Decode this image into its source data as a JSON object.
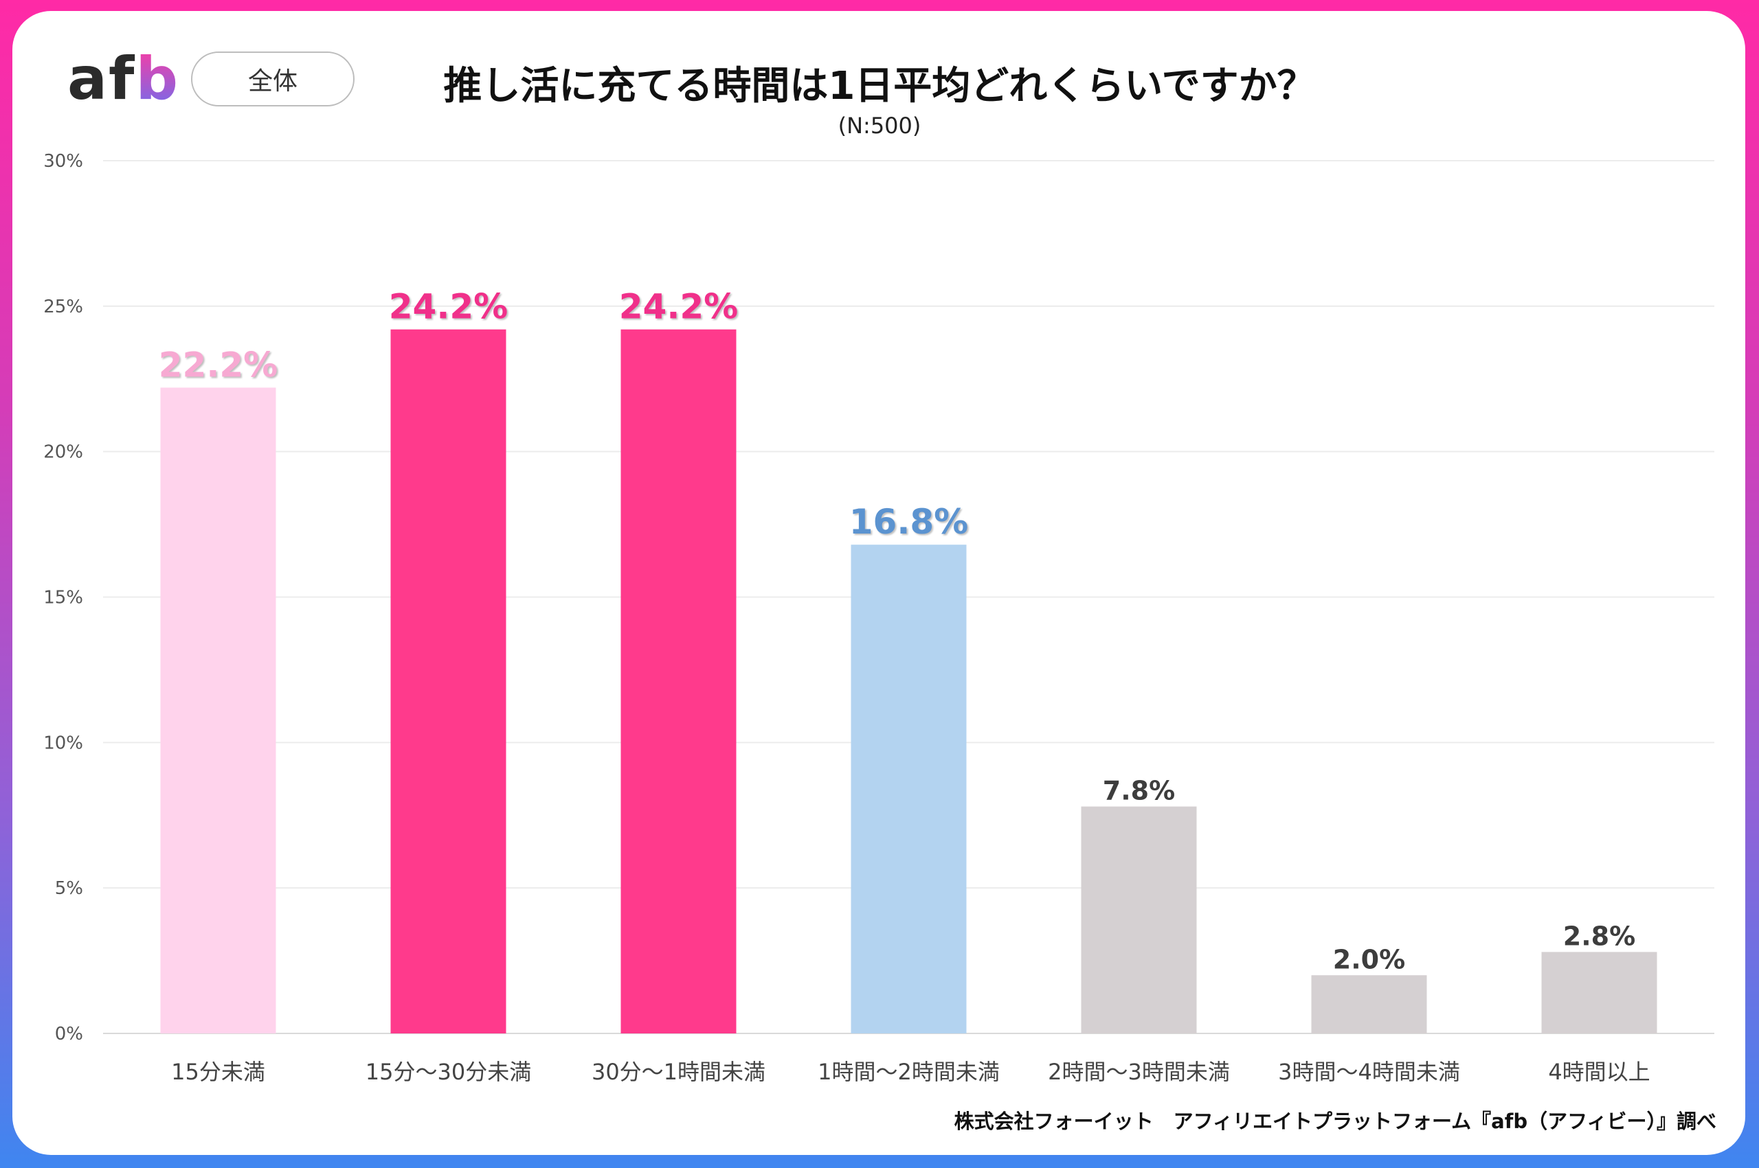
{
  "header": {
    "logo_text": "afb",
    "segment_label": "全体",
    "title": "推し活に充てる時間は1日平均どれくらいですか？",
    "subtitle": "(N:500)"
  },
  "footer": {
    "source": "株式会社フォーイット　アフィリエイトプラットフォーム『afb（アフィビー）』調べ"
  },
  "chart_data": {
    "type": "bar",
    "title": "推し活に充てる時間は1日平均どれくらいですか？",
    "subtitle": "(N:500)",
    "categories": [
      "15分未満",
      "15分～30分未満",
      "30分～1時間未満",
      "1時間～2時間未満",
      "2時間～3時間未満",
      "3時間～4時間未満",
      "4時間以上"
    ],
    "values": [
      22.2,
      24.2,
      24.2,
      16.8,
      7.8,
      2.0,
      2.8
    ],
    "data_labels": [
      "22.2%",
      "24.2%",
      "24.2%",
      "16.8%",
      "7.8%",
      "2.0%",
      "2.8%"
    ],
    "bar_colors": [
      "#ffd3ec",
      "#ff3a8c",
      "#ff3a8c",
      "#b3d3f0",
      "#d5d0d2",
      "#d5d0d2",
      "#d5d0d2"
    ],
    "label_colors": [
      "#f7a9d2",
      "#f0308a",
      "#f0308a",
      "#5b93d0",
      "#3d3d3d",
      "#3d3d3d",
      "#3d3d3d"
    ],
    "yticks": [
      "0%",
      "5%",
      "10%",
      "15%",
      "20%",
      "25%",
      "30%"
    ],
    "ylim": [
      0,
      30
    ],
    "grid": true,
    "xlabel": "",
    "ylabel": ""
  }
}
